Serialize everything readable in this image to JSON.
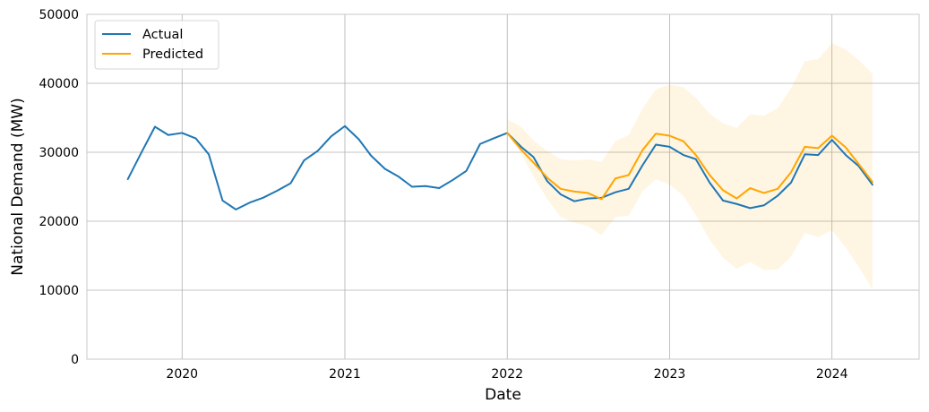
{
  "chart_data": {
    "type": "line",
    "title": "",
    "xlabel": "Date",
    "ylabel": "National Demand (MW)",
    "xlim": [
      "2019-06-01",
      "2024-07-15"
    ],
    "ylim": [
      0,
      50000
    ],
    "xticks": [
      "2020",
      "2021",
      "2022",
      "2023",
      "2024"
    ],
    "yticks": [
      "0",
      "10000",
      "20000",
      "30000",
      "40000",
      "50000"
    ],
    "grid": true,
    "legend_position": "top-left",
    "colors": {
      "actual": "#1f77b4",
      "predicted": "#ffa500",
      "band": "#ffa500"
    },
    "series": [
      {
        "name": "Actual",
        "x": [
          "2019-09-01",
          "2019-10-01",
          "2019-11-01",
          "2019-12-01",
          "2020-01-01",
          "2020-02-01",
          "2020-03-01",
          "2020-04-01",
          "2020-05-01",
          "2020-06-01",
          "2020-07-01",
          "2020-08-01",
          "2020-09-01",
          "2020-10-01",
          "2020-11-01",
          "2020-12-01",
          "2021-01-01",
          "2021-02-01",
          "2021-03-01",
          "2021-04-01",
          "2021-05-01",
          "2021-06-01",
          "2021-07-01",
          "2021-08-01",
          "2021-09-01",
          "2021-10-01",
          "2021-11-01",
          "2021-12-01",
          "2022-01-01",
          "2022-02-01",
          "2022-03-01",
          "2022-04-01",
          "2022-05-01",
          "2022-06-01",
          "2022-07-01",
          "2022-08-01",
          "2022-09-01",
          "2022-10-01",
          "2022-11-01",
          "2022-12-01",
          "2023-01-01",
          "2023-02-01",
          "2023-03-01",
          "2023-04-01",
          "2023-05-01",
          "2023-06-01",
          "2023-07-01",
          "2023-08-01",
          "2023-09-01",
          "2023-10-01",
          "2023-11-01",
          "2023-12-01",
          "2024-01-01",
          "2024-02-01",
          "2024-03-01",
          "2024-04-01"
        ],
        "values": [
          26100,
          29900,
          33700,
          32500,
          32800,
          32000,
          29700,
          23000,
          21700,
          22700,
          23400,
          24400,
          25500,
          28800,
          30200,
          32300,
          33800,
          31900,
          29500,
          27600,
          26500,
          25000,
          25100,
          24800,
          26000,
          27300,
          31200,
          32000,
          32800,
          30800,
          29300,
          25800,
          23900,
          22900,
          23300,
          23400,
          24200,
          24700,
          28100,
          31100,
          30800,
          29600,
          29000,
          25600,
          23000,
          22500,
          21900,
          22300,
          23700,
          25600,
          29700,
          29600,
          31800,
          29600,
          28000,
          25300
        ]
      },
      {
        "name": "Predicted",
        "x": [
          "2022-01-01",
          "2022-02-01",
          "2022-03-01",
          "2022-04-01",
          "2022-05-01",
          "2022-06-01",
          "2022-07-01",
          "2022-08-01",
          "2022-09-01",
          "2022-10-01",
          "2022-11-01",
          "2022-12-01",
          "2023-01-01",
          "2023-02-01",
          "2023-03-01",
          "2023-04-01",
          "2023-05-01",
          "2023-06-01",
          "2023-07-01",
          "2023-08-01",
          "2023-09-01",
          "2023-10-01",
          "2023-11-01",
          "2023-12-01",
          "2024-01-01",
          "2024-02-01",
          "2024-03-01",
          "2024-04-01"
        ],
        "values": [
          32800,
          30400,
          28500,
          26300,
          24700,
          24300,
          24100,
          23200,
          26200,
          26700,
          30300,
          32700,
          32400,
          31600,
          29600,
          26700,
          24500,
          23300,
          24800,
          24100,
          24700,
          27100,
          30800,
          30600,
          32400,
          30700,
          28300,
          25700
        ],
        "lower": [
          32800,
          29800,
          26500,
          23200,
          20600,
          19800,
          19300,
          18000,
          20600,
          20800,
          24300,
          26100,
          25300,
          23700,
          20900,
          17300,
          14700,
          13100,
          14100,
          12900,
          13000,
          14900,
          18300,
          17700,
          18700,
          16200,
          13400,
          10100
        ],
        "upper": [
          34800,
          33700,
          31700,
          30200,
          29000,
          28800,
          29000,
          28600,
          31600,
          32500,
          36300,
          39100,
          39800,
          39400,
          37900,
          35600,
          34200,
          33500,
          35500,
          35300,
          36400,
          39300,
          43200,
          43500,
          45800,
          44900,
          43400,
          41400
        ]
      }
    ]
  }
}
